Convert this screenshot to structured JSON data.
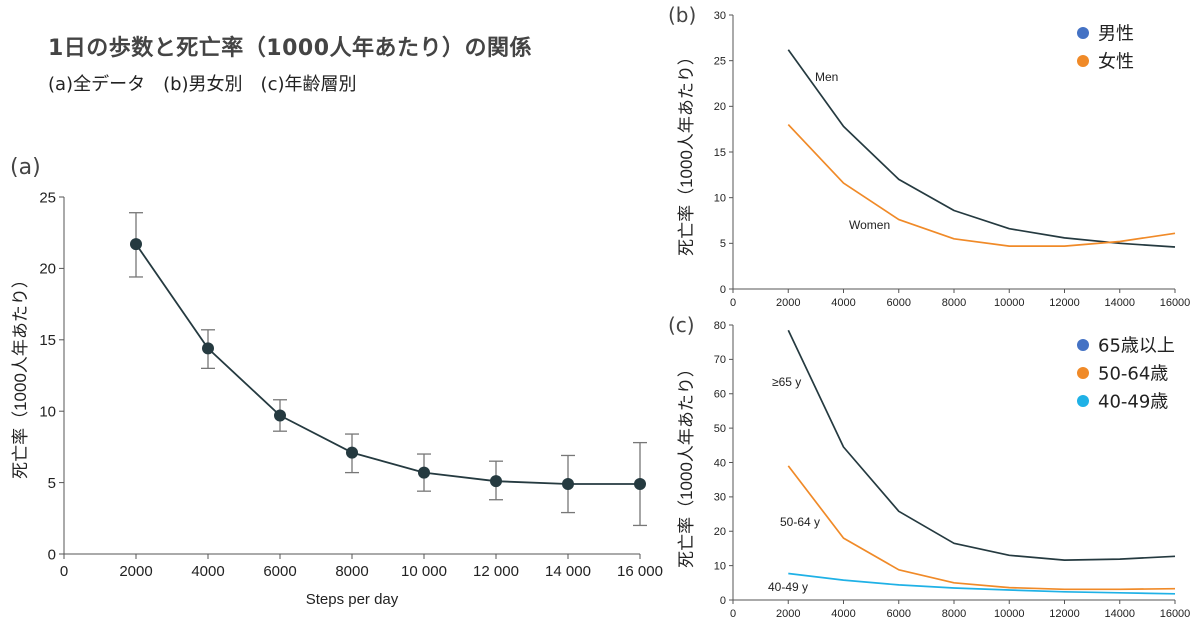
{
  "header": {
    "title": "1日の歩数と死亡率（1000人年あたり）の関係",
    "subtitle": "(a)全データ　(b)男女別　(c)年齢層別"
  },
  "colors": {
    "dark": "#253a40",
    "orange": "#f08a28",
    "blue": "#4472c4",
    "cyan": "#1fb1e6",
    "axis": "#555555",
    "error": "#777777"
  },
  "chart_data": [
    {
      "id": "a",
      "panel_label": "(a)",
      "type": "line",
      "xlabel": "Steps per day",
      "ylabel": "死亡率（1000人年あたり）",
      "xlim": [
        0,
        16000
      ],
      "ylim": [
        0,
        25
      ],
      "x_ticks": [
        0,
        2000,
        4000,
        6000,
        8000,
        10000,
        12000,
        14000,
        16000
      ],
      "x_tick_labels": [
        "0",
        "2000",
        "4000",
        "6000",
        "8000",
        "10 000",
        "12 000",
        "14 000",
        "16 000"
      ],
      "y_ticks": [
        0,
        5,
        10,
        15,
        20,
        25
      ],
      "y_tick_labels": [
        "0",
        "5",
        "10",
        "15",
        "20",
        "25"
      ],
      "series": [
        {
          "x": [
            2000,
            4000,
            6000,
            8000,
            10000,
            12000,
            14000,
            16000
          ],
          "y": [
            21.7,
            14.4,
            9.7,
            7.1,
            5.7,
            5.1,
            4.9,
            4.9
          ],
          "err_low": [
            19.4,
            13.0,
            8.6,
            5.7,
            4.4,
            3.8,
            2.9,
            2.0
          ],
          "err_high": [
            23.9,
            15.7,
            10.8,
            8.4,
            7.0,
            6.5,
            6.9,
            7.8
          ],
          "color": "#253a40"
        }
      ]
    },
    {
      "id": "b",
      "panel_label": "(b)",
      "type": "line",
      "xlabel": "",
      "ylabel": "死亡率（1000人年あたり）",
      "xlim": [
        0,
        16000
      ],
      "ylim": [
        0,
        30
      ],
      "x_ticks": [
        0,
        2000,
        4000,
        6000,
        8000,
        10000,
        12000,
        14000,
        16000
      ],
      "x_tick_labels": [
        "0",
        "2000",
        "4000",
        "6000",
        "8000",
        "10000",
        "12000",
        "14000",
        "16000"
      ],
      "y_ticks": [
        0,
        5,
        10,
        15,
        20,
        25,
        30
      ],
      "y_tick_labels": [
        "0",
        "5",
        "10",
        "15",
        "20",
        "25",
        "30"
      ],
      "legend": {
        "position": "top-right",
        "entries": [
          {
            "label": "男性",
            "color": "#4472c4"
          },
          {
            "label": "女性",
            "color": "#f08a28"
          }
        ]
      },
      "series": [
        {
          "label": "Men",
          "color": "#253a40",
          "x": [
            2000,
            4000,
            6000,
            8000,
            10000,
            12000,
            14000,
            16000
          ],
          "y": [
            26.2,
            17.8,
            12.0,
            8.6,
            6.6,
            5.6,
            5.0,
            4.6
          ]
        },
        {
          "label": "Women",
          "color": "#f08a28",
          "x": [
            2000,
            4000,
            6000,
            8000,
            10000,
            12000,
            14000,
            16000
          ],
          "y": [
            18.0,
            11.6,
            7.6,
            5.5,
            4.7,
            4.7,
            5.2,
            6.1
          ]
        }
      ]
    },
    {
      "id": "c",
      "panel_label": "(c)",
      "type": "line",
      "xlabel": "",
      "ylabel": "死亡率（1000人年あたり）",
      "xlim": [
        0,
        16000
      ],
      "ylim": [
        0,
        80
      ],
      "x_ticks": [
        0,
        2000,
        4000,
        6000,
        8000,
        10000,
        12000,
        14000,
        16000
      ],
      "x_tick_labels": [
        "0",
        "2000",
        "4000",
        "6000",
        "8000",
        "10000",
        "12000",
        "14000",
        "16000"
      ],
      "y_ticks": [
        0,
        10,
        20,
        30,
        40,
        50,
        60,
        70,
        80
      ],
      "y_tick_labels": [
        "0",
        "10",
        "20",
        "30",
        "40",
        "50",
        "60",
        "70",
        "80"
      ],
      "legend": {
        "position": "top-right",
        "entries": [
          {
            "label": "65歳以上",
            "color": "#4472c4"
          },
          {
            "label": "50-64歳",
            "color": "#f08a28"
          },
          {
            "label": "40-49歳",
            "color": "#1fb1e6"
          }
        ]
      },
      "series": [
        {
          "label": "≥65 y",
          "color": "#253a40",
          "x": [
            2000,
            4000,
            6000,
            8000,
            10000,
            12000,
            14000,
            16000
          ],
          "y": [
            78.5,
            44.5,
            25.8,
            16.5,
            13.0,
            11.6,
            11.9,
            12.7
          ]
        },
        {
          "label": "50-64 y",
          "color": "#f08a28",
          "x": [
            2000,
            4000,
            6000,
            8000,
            10000,
            12000,
            14000,
            16000
          ],
          "y": [
            39.0,
            18.0,
            8.8,
            5.0,
            3.6,
            3.1,
            3.1,
            3.3
          ]
        },
        {
          "label": "40-49 y",
          "color": "#1fb1e6",
          "x": [
            2000,
            4000,
            6000,
            8000,
            10000,
            12000,
            14000,
            16000
          ],
          "y": [
            7.7,
            5.8,
            4.4,
            3.5,
            2.9,
            2.4,
            2.1,
            1.8
          ]
        }
      ]
    }
  ]
}
